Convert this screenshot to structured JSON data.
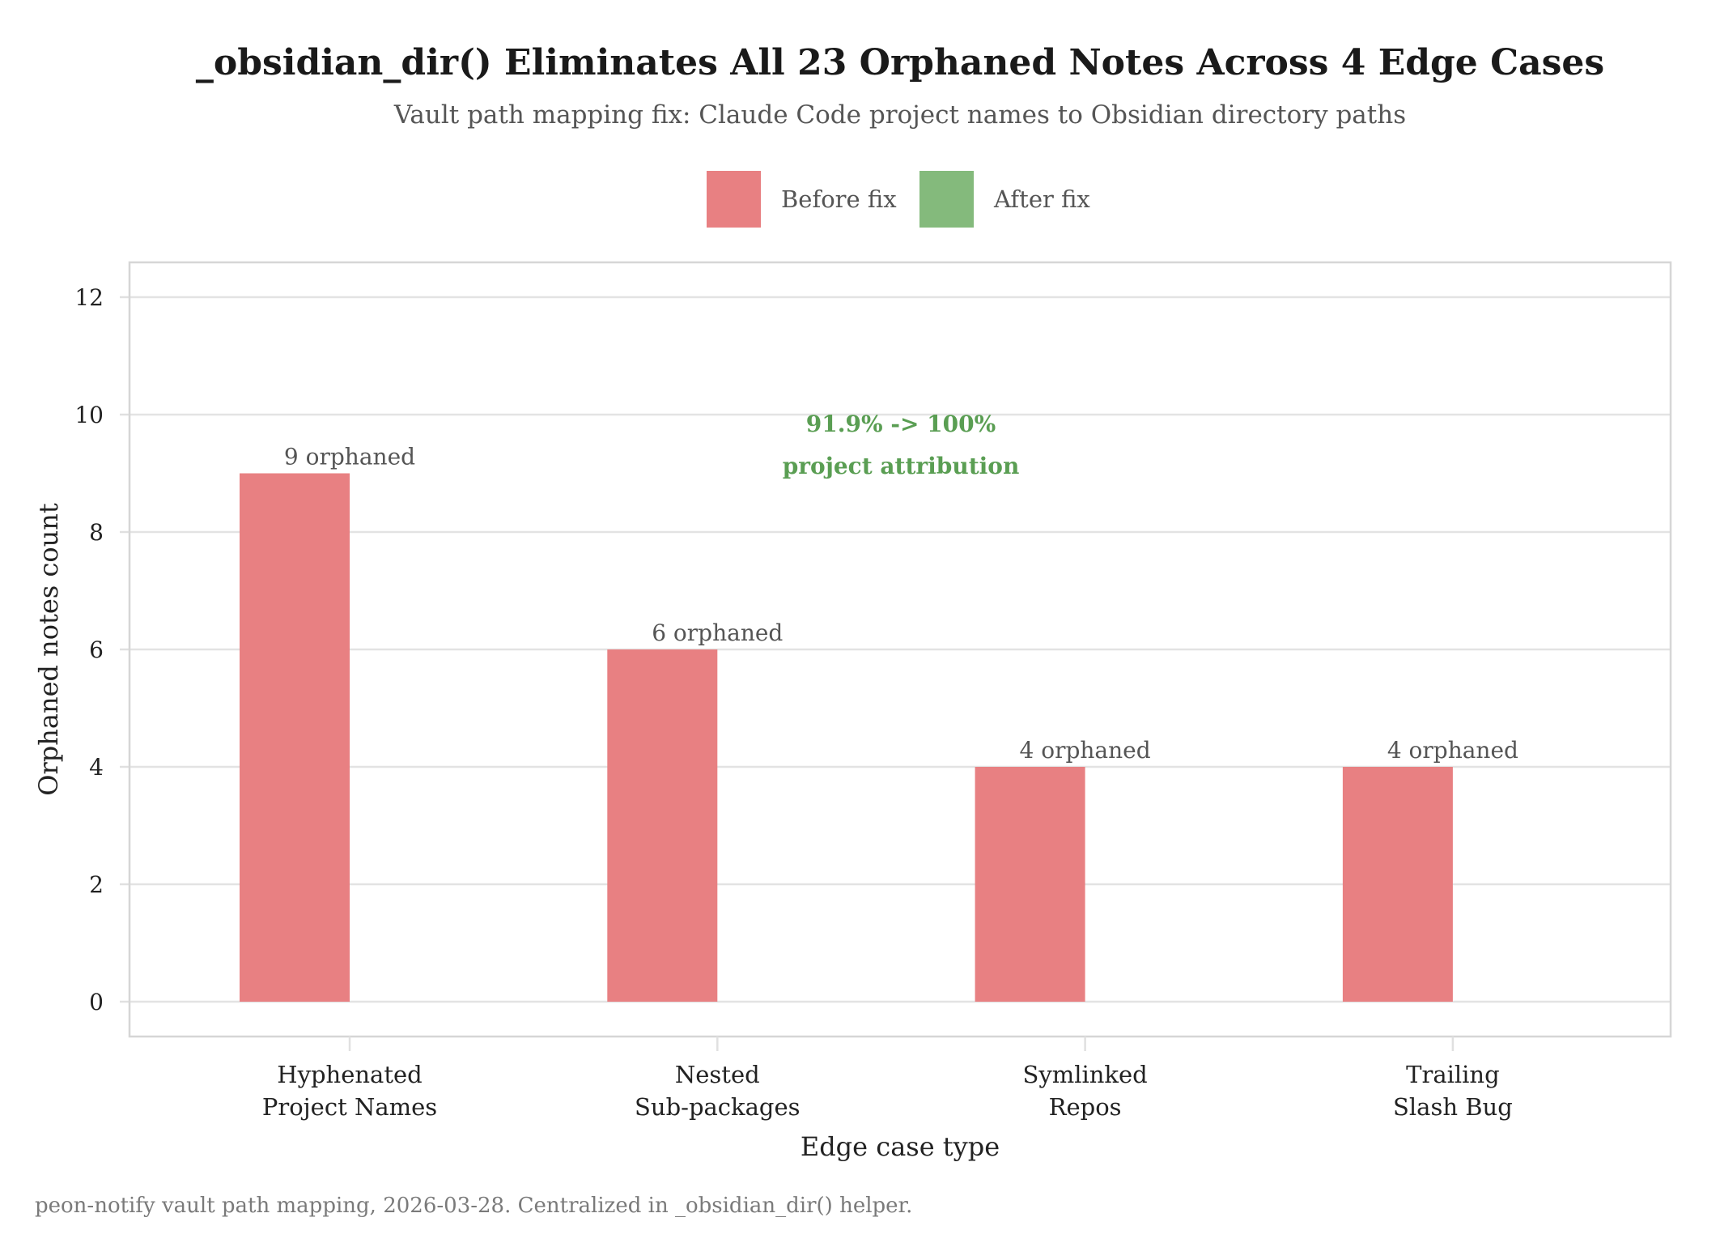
{
  "chart_data": {
    "type": "bar",
    "title": "_obsidian_dir() Eliminates All 23 Orphaned Notes Across 4 Edge Cases",
    "subtitle": "Vault path mapping fix: Claude Code project names to Obsidian directory paths",
    "xlabel": "Edge case type",
    "ylabel": "Orphaned notes count",
    "ylim": [
      -0.6,
      12.6
    ],
    "yticks": [
      0,
      2,
      4,
      6,
      8,
      10,
      12
    ],
    "categories": [
      [
        "Hyphenated",
        "Project Names"
      ],
      [
        "Nested",
        "Sub-packages"
      ],
      [
        "Symlinked",
        "Repos"
      ],
      [
        "Trailing",
        "Slash Bug"
      ]
    ],
    "series": [
      {
        "name": "Before fix",
        "color": "#e88082",
        "values": [
          9,
          6,
          4,
          4
        ]
      },
      {
        "name": "After fix",
        "color": "#84ba7c",
        "values": [
          0,
          0,
          0,
          0
        ]
      }
    ],
    "bar_labels": [
      "9 orphaned",
      "6 orphaned",
      "4 orphaned",
      "4 orphaned"
    ],
    "annotation": {
      "lines": [
        "91.9%  -> 100%",
        "project attribution"
      ],
      "color": "#5a9e53",
      "x_category_position": 2.0,
      "y_value": 9.6
    },
    "legend": {
      "position": "top",
      "entries": [
        "Before fix",
        "After fix"
      ]
    },
    "grid": true,
    "caption": "peon-notify vault path mapping, 2026-03-28. Centralized in _obsidian_dir() helper."
  }
}
